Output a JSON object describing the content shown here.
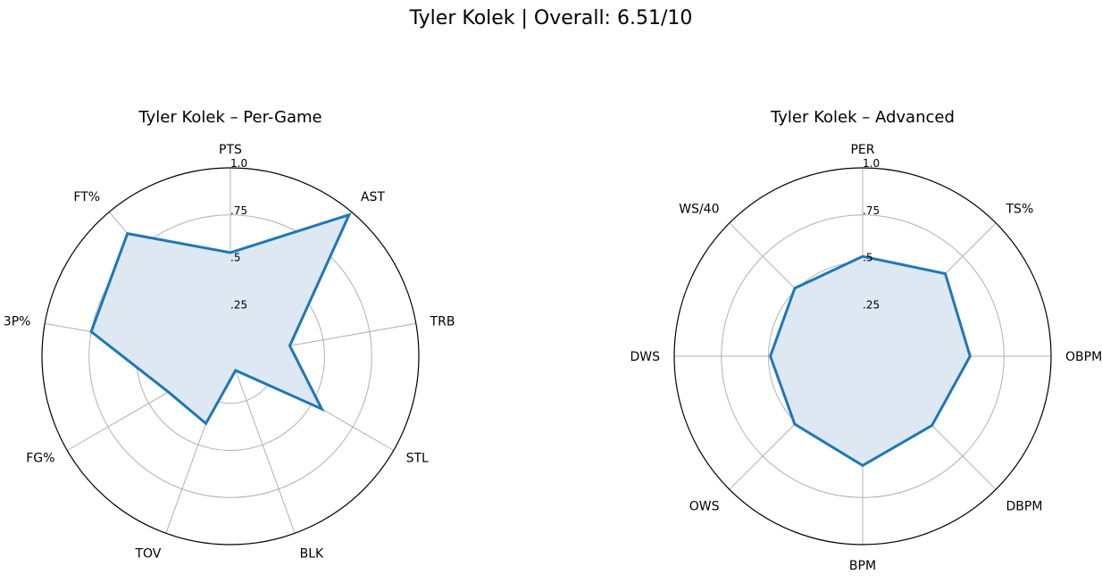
{
  "figure_title": "Tyler Kolek | Overall: 6.51/10",
  "chart_data": [
    {
      "type": "radar",
      "title": "Tyler Kolek – Per-Game",
      "categories": [
        "PTS",
        "AST",
        "TRB",
        "STL",
        "BLK",
        "TOV",
        "FG%",
        "3P%",
        "FT%"
      ],
      "values": [
        0.55,
        0.98,
        0.32,
        0.56,
        0.08,
        0.38,
        0.38,
        0.75,
        0.85
      ],
      "rlim": [
        0,
        1.0
      ],
      "r_ticks": [
        ".25",
        ".5",
        ".75",
        "1.0"
      ],
      "color": "#1f77b4",
      "fill_color": "#dde8f3",
      "grid": true
    },
    {
      "type": "radar",
      "title": "Tyler Kolek – Advanced",
      "categories": [
        "PER",
        "TS%",
        "OBPM",
        "DBPM",
        "BPM",
        "OWS",
        "DWS",
        "WS/40"
      ],
      "values": [
        0.53,
        0.62,
        0.57,
        0.52,
        0.58,
        0.51,
        0.49,
        0.51
      ],
      "rlim": [
        0,
        1.0
      ],
      "r_ticks": [
        ".25",
        ".5",
        ".75",
        "1.0"
      ],
      "color": "#1f77b4",
      "fill_color": "#dde8f3",
      "grid": true
    }
  ]
}
